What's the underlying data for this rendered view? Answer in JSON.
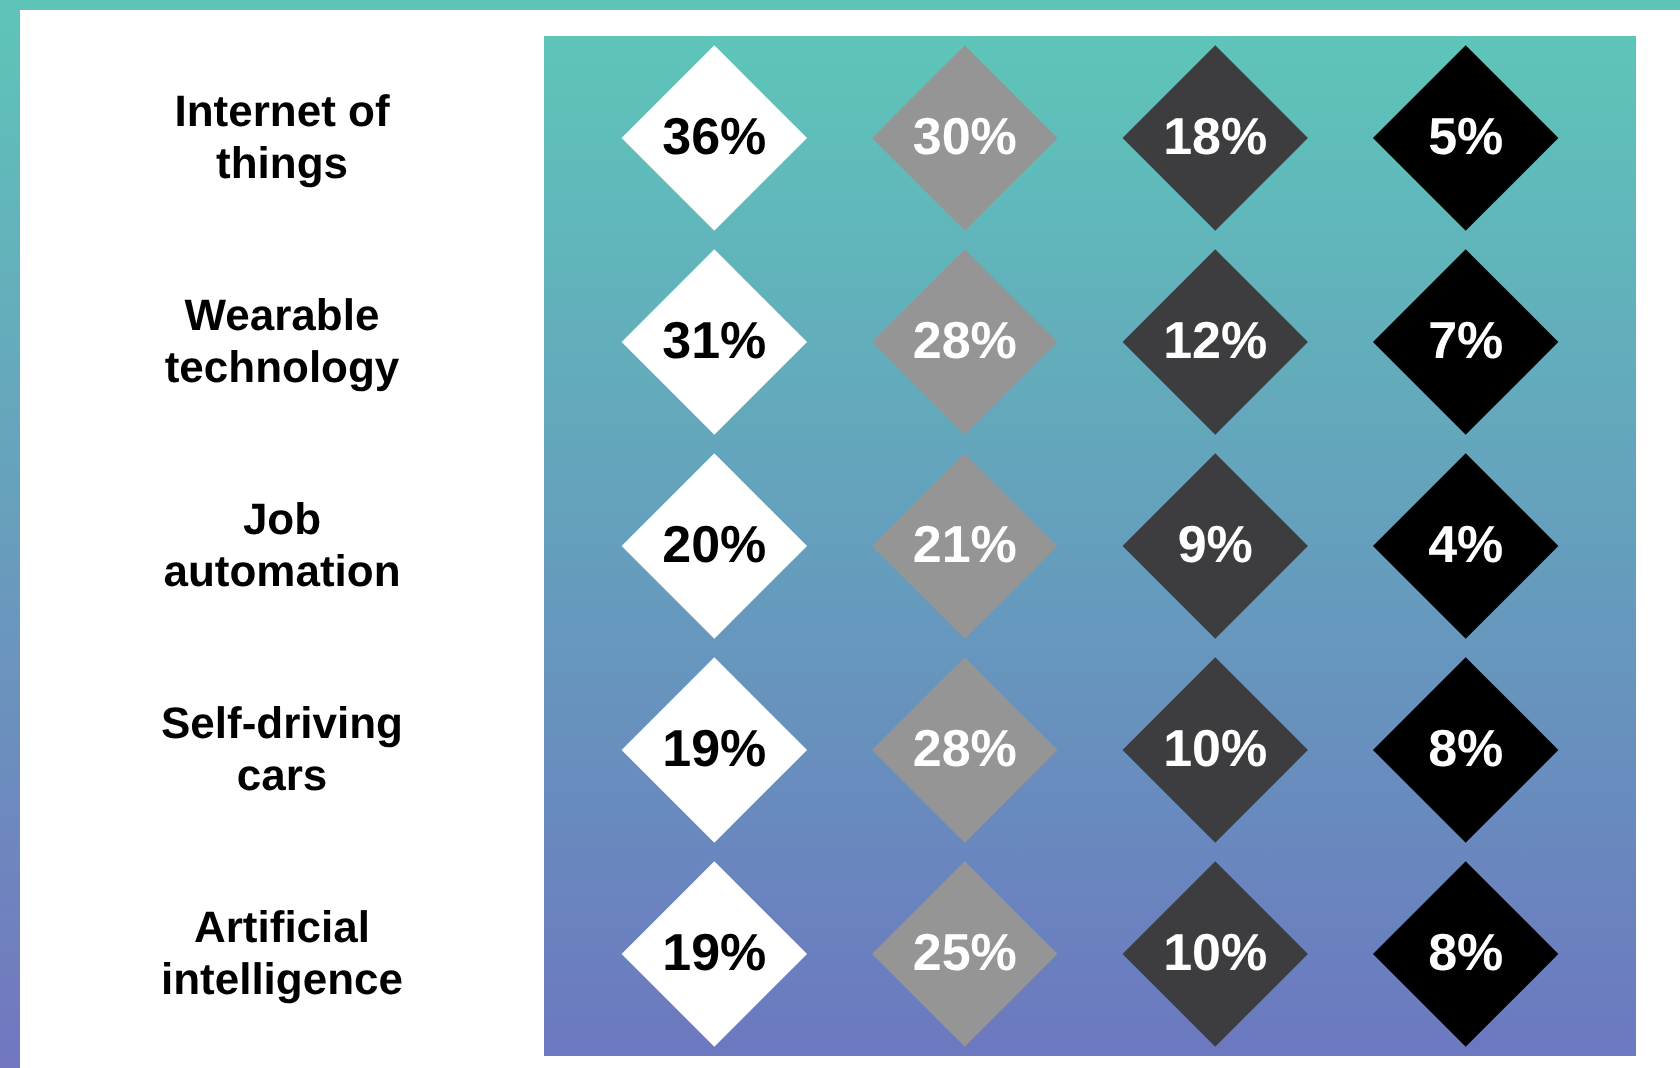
{
  "chart_data": {
    "type": "other",
    "categories": [
      "Internet of things",
      "Wearable technology",
      "Job automation",
      "Self-driving cars",
      "Artificial intelligence"
    ],
    "series": [
      {
        "color": "#ffffff",
        "values": [
          36,
          31,
          20,
          19,
          19
        ],
        "value_labels": [
          "36%",
          "31%",
          "20%",
          "19%",
          "19%"
        ]
      },
      {
        "color": "#959595",
        "values": [
          30,
          28,
          21,
          28,
          25
        ],
        "value_labels": [
          "30%",
          "28%",
          "21%",
          "28%",
          "25%"
        ]
      },
      {
        "color": "#3d3d3f",
        "values": [
          18,
          12,
          9,
          10,
          10
        ],
        "value_labels": [
          "18%",
          "12%",
          "9%",
          "10%",
          "10%"
        ]
      },
      {
        "color": "#000000",
        "values": [
          5,
          7,
          4,
          8,
          8
        ],
        "value_labels": [
          "5%",
          "7%",
          "4%",
          "8%",
          "8%"
        ]
      }
    ]
  }
}
